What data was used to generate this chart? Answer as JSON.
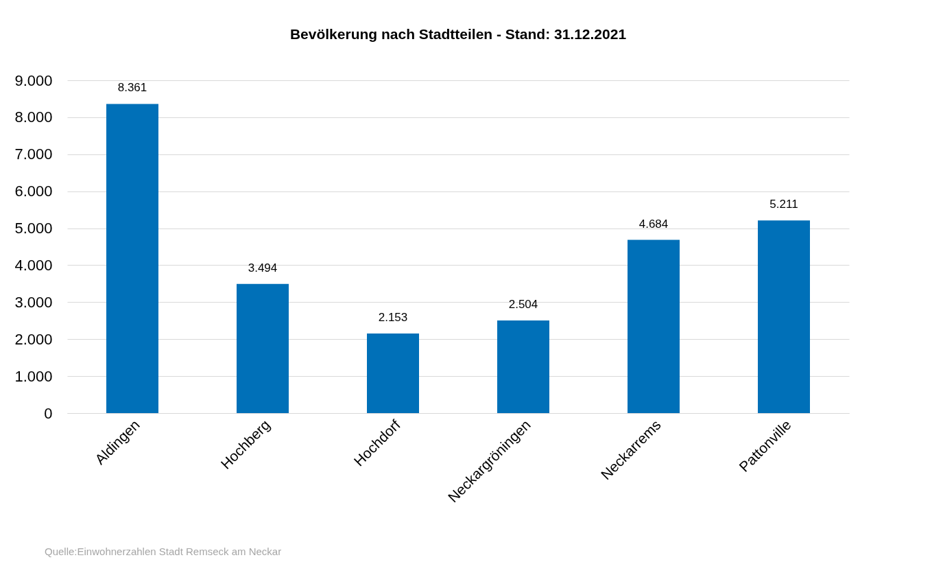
{
  "chart_data": {
    "type": "bar",
    "title": "Bevölkerung nach Stadtteilen - Stand: 31.12.2021",
    "categories": [
      "Aldingen",
      "Hochberg",
      "Hochdorf",
      "Neckargröningen",
      "Neckarrems",
      "Pattonville"
    ],
    "values": [
      8361,
      3494,
      2153,
      2504,
      4684,
      5211
    ],
    "value_labels": [
      "8.361",
      "3.494",
      "2.153",
      "2.504",
      "4.684",
      "5.211"
    ],
    "color": "#0070b8",
    "ylim": [
      0,
      9000
    ],
    "yticks": [
      {
        "value": 0,
        "label": "0"
      },
      {
        "value": 1000,
        "label": "1.000"
      },
      {
        "value": 2000,
        "label": "2.000"
      },
      {
        "value": 3000,
        "label": "3.000"
      },
      {
        "value": 4000,
        "label": "4.000"
      },
      {
        "value": 5000,
        "label": "5.000"
      },
      {
        "value": 6000,
        "label": "6.000"
      },
      {
        "value": 7000,
        "label": "7.000"
      },
      {
        "value": 8000,
        "label": "8.000"
      },
      {
        "value": 9000,
        "label": "9.000"
      }
    ],
    "grid": "y",
    "annotations": [
      "Quelle:Einwohnerzahlen  Stadt Remseck am Neckar"
    ]
  }
}
